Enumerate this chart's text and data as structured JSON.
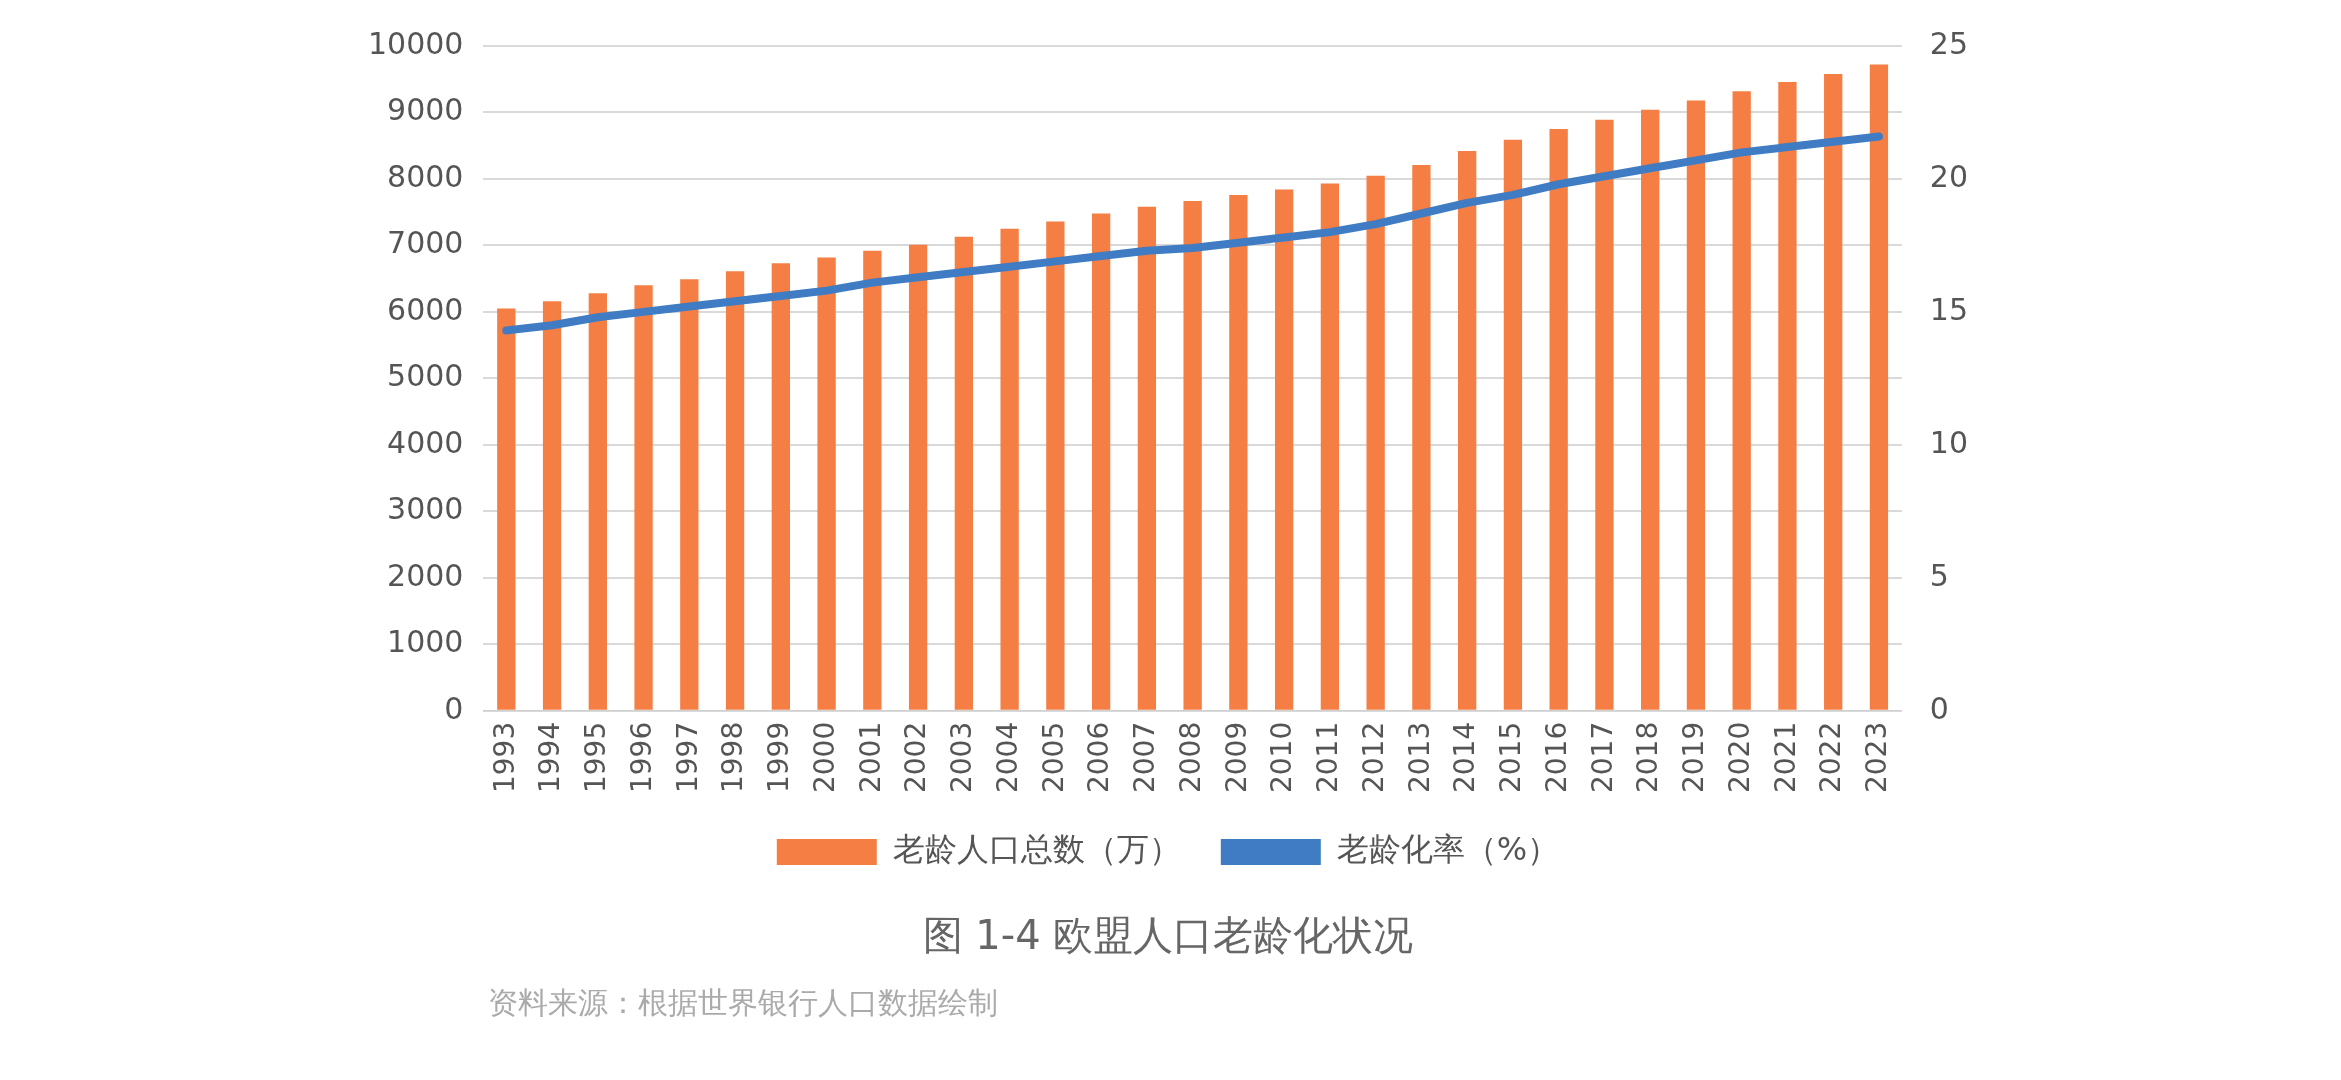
{
  "chart_data": {
    "type": "bar",
    "title": "图 1-4  欧盟人口老龄化状况",
    "annotations": [
      "资料来源：根据世界银行人口数据绘制"
    ],
    "categories": [
      "1993",
      "1994",
      "1995",
      "1996",
      "1997",
      "1998",
      "1999",
      "2000",
      "2001",
      "2002",
      "2003",
      "2004",
      "2005",
      "2006",
      "2007",
      "2008",
      "2009",
      "2010",
      "2011",
      "2012",
      "2013",
      "2014",
      "2015",
      "2016",
      "2017",
      "2018",
      "2019",
      "2020",
      "2021",
      "2022",
      "2023"
    ],
    "series": [
      {
        "name": "老龄人口总数（万）",
        "color": "#f47e43",
        "values": [
          6050,
          6160,
          6280,
          6400,
          6490,
          6610,
          6730,
          6820,
          6920,
          7010,
          7130,
          7250,
          7360,
          7480,
          7580,
          7670,
          7760,
          7840,
          7930,
          8050,
          8210,
          8420,
          8590,
          8750,
          8890,
          9040,
          9180,
          9320,
          9460,
          9580,
          9720
        ]
      },
      {
        "name": "老龄化率（%）",
        "type": "line",
        "axis": "y2",
        "color": "#3f7cc4",
        "values": [
          14.3,
          14.5,
          14.8,
          15.0,
          15.2,
          15.4,
          15.6,
          15.8,
          16.1,
          16.3,
          16.5,
          16.7,
          16.9,
          17.1,
          17.3,
          17.4,
          17.6,
          17.8,
          18.0,
          18.3,
          18.7,
          19.1,
          19.4,
          19.8,
          20.1,
          20.4,
          20.7,
          21.0,
          21.2,
          21.4,
          21.6
        ]
      }
    ],
    "ylim": [
      0,
      10000
    ],
    "yticks": [
      0,
      1000,
      2000,
      3000,
      4000,
      5000,
      6000,
      7000,
      8000,
      9000,
      10000
    ],
    "y2lim": [
      0,
      25
    ],
    "y2ticks": [
      0,
      5,
      10,
      15,
      20,
      25
    ],
    "grid": "y",
    "legend": "bottom",
    "marker": "none",
    "line_style": "solid"
  }
}
